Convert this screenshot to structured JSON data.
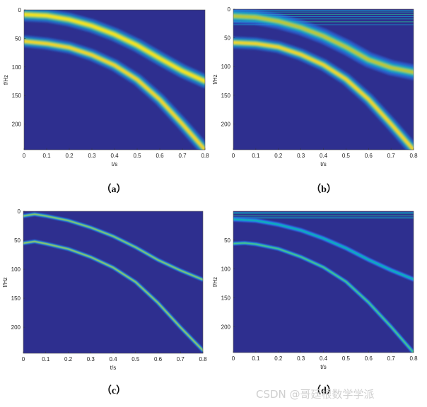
{
  "figure": {
    "watermark": "CSDN @哥廷根数学学派"
  },
  "chart_data": [
    {
      "type": "heatmap",
      "panel_label": "（a）",
      "xlabel": "t/s",
      "ylabel": "f/Hz",
      "xlim": [
        0,
        0.8
      ],
      "ylim": [
        245,
        0
      ],
      "xticks": [
        "0",
        "0.1",
        "0.2",
        "0.3",
        "0.4",
        "0.5",
        "0.6",
        "0.7",
        "0.8"
      ],
      "yticks": [
        "0",
        "50",
        "100",
        "150",
        "200"
      ],
      "yticks_values": [
        0,
        50,
        100,
        150,
        200
      ],
      "colormap": "parula",
      "background_color": "#2e2f8f",
      "ridges": [
        {
          "t": [
            0.0,
            0.1,
            0.2,
            0.3,
            0.4,
            0.5,
            0.6,
            0.7,
            0.8
          ],
          "f": [
            8,
            10,
            17,
            28,
            43,
            62,
            85,
            107,
            125
          ],
          "width": 8,
          "peak": 0.95
        },
        {
          "t": [
            0.0,
            0.1,
            0.2,
            0.3,
            0.4,
            0.5,
            0.6,
            0.7,
            0.8
          ],
          "f": [
            55,
            59,
            66,
            79,
            97,
            122,
            157,
            200,
            245
          ],
          "width": 7,
          "peak": 0.92
        }
      ],
      "noise_rows": []
    },
    {
      "type": "heatmap",
      "panel_label": "（b）",
      "xlabel": "t/s",
      "ylabel": "f/Hz",
      "xlim": [
        0,
        0.8
      ],
      "ylim": [
        245,
        0
      ],
      "xticks": [
        "0",
        "0.1",
        "0.2",
        "0.3",
        "0.4",
        "0.5",
        "0.6",
        "0.7",
        "0.8"
      ],
      "yticks": [
        "0",
        "50",
        "100",
        "150",
        "200"
      ],
      "yticks_values": [
        0,
        50,
        100,
        150,
        200
      ],
      "colormap": "parula",
      "background_color": "#2e2f8f",
      "ridges": [
        {
          "t": [
            0.0,
            0.1,
            0.2,
            0.3,
            0.4,
            0.5,
            0.6,
            0.7,
            0.8
          ],
          "f": [
            12,
            14,
            21,
            32,
            47,
            66,
            88,
            102,
            110
          ],
          "width": 9,
          "peak": 0.75
        },
        {
          "t": [
            0.0,
            0.1,
            0.2,
            0.3,
            0.4,
            0.5,
            0.6,
            0.7,
            0.8
          ],
          "f": [
            58,
            60,
            66,
            79,
            97,
            122,
            157,
            200,
            245
          ],
          "width": 7,
          "peak": 0.92
        }
      ],
      "noise_rows": [
        2,
        5,
        9,
        13,
        17,
        22,
        27
      ]
    },
    {
      "type": "heatmap",
      "panel_label": "（c）",
      "xlabel": "t/s",
      "ylabel": "f/Hz",
      "xlim": [
        0,
        0.8
      ],
      "ylim": [
        245,
        0
      ],
      "xticks": [
        "0",
        "0.1",
        "0.2",
        "0.3",
        "0.4",
        "0.5",
        "0.6",
        "0.7",
        "0.8"
      ],
      "yticks": [
        "0",
        "50",
        "100",
        "150",
        "200"
      ],
      "yticks_values": [
        0,
        50,
        100,
        150,
        200
      ],
      "colormap": "parula",
      "background_color": "#2e2f8f",
      "ridges": [
        {
          "t": [
            0.0,
            0.05,
            0.1,
            0.2,
            0.3,
            0.4,
            0.5,
            0.6,
            0.7,
            0.8
          ],
          "f": [
            8,
            5,
            8,
            16,
            28,
            43,
            62,
            84,
            102,
            118
          ],
          "width": 2.5,
          "peak": 0.7
        },
        {
          "t": [
            0.0,
            0.05,
            0.1,
            0.2,
            0.3,
            0.4,
            0.5,
            0.6,
            0.7,
            0.8
          ],
          "f": [
            55,
            52,
            56,
            65,
            79,
            97,
            122,
            158,
            200,
            240
          ],
          "width": 2.5,
          "peak": 0.72
        }
      ],
      "noise_rows": []
    },
    {
      "type": "heatmap",
      "panel_label": "（d）",
      "xlabel": "t/s",
      "ylabel": "f/Hz",
      "xlim": [
        0,
        0.8
      ],
      "ylim": [
        245,
        0
      ],
      "xticks": [
        "0",
        "0.1",
        "0.2",
        "0.3",
        "0.4",
        "0.5",
        "0.6",
        "0.7",
        "0.8"
      ],
      "yticks": [
        "50",
        "100",
        "150",
        "200"
      ],
      "yticks_values": [
        50,
        100,
        150,
        200
      ],
      "colormap": "parula",
      "background_color": "#2e2f8f",
      "ridges": [
        {
          "t": [
            0.0,
            0.1,
            0.2,
            0.3,
            0.4,
            0.5,
            0.6,
            0.7,
            0.8
          ],
          "f": [
            14,
            16,
            23,
            33,
            47,
            64,
            84,
            102,
            118
          ],
          "width": 3,
          "peak": 0.45
        },
        {
          "t": [
            0.0,
            0.05,
            0.1,
            0.2,
            0.3,
            0.4,
            0.5,
            0.6,
            0.7,
            0.8
          ],
          "f": [
            56,
            55,
            57,
            65,
            79,
            97,
            122,
            158,
            200,
            245
          ],
          "width": 2.5,
          "peak": 0.6
        }
      ],
      "noise_rows": [
        2,
        4,
        7,
        10,
        12
      ]
    }
  ]
}
